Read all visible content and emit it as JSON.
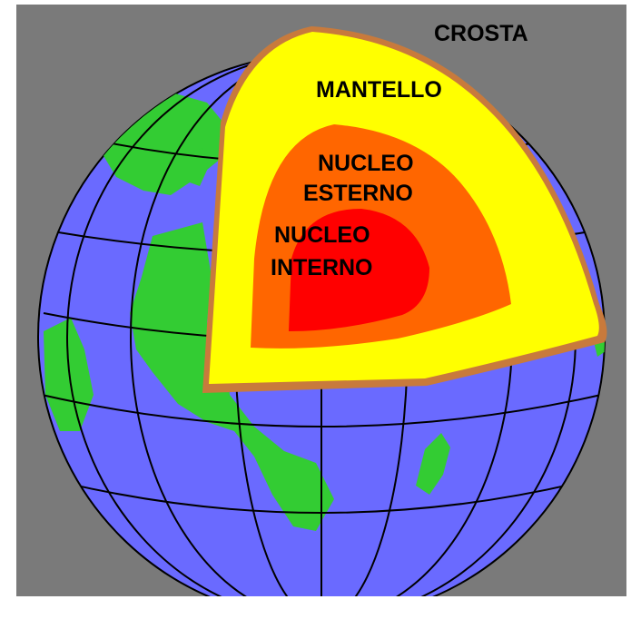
{
  "labels": {
    "crust": "CROSTA",
    "mantle": "MANTELLO",
    "outer_core_line1": "NUCLEO",
    "outer_core_line2": "ESTERNO",
    "inner_core_line1": "NUCLEO",
    "inner_core_line2": "INTERNO"
  },
  "colors": {
    "background": "#7a7a7a",
    "ocean": "#6a6aff",
    "land": "#33cc33",
    "crust": "#c87a3c",
    "mantle": "#ffff00",
    "outer_core": "#ff6600",
    "inner_core": "#ff0000",
    "grid_lines": "#000000"
  }
}
